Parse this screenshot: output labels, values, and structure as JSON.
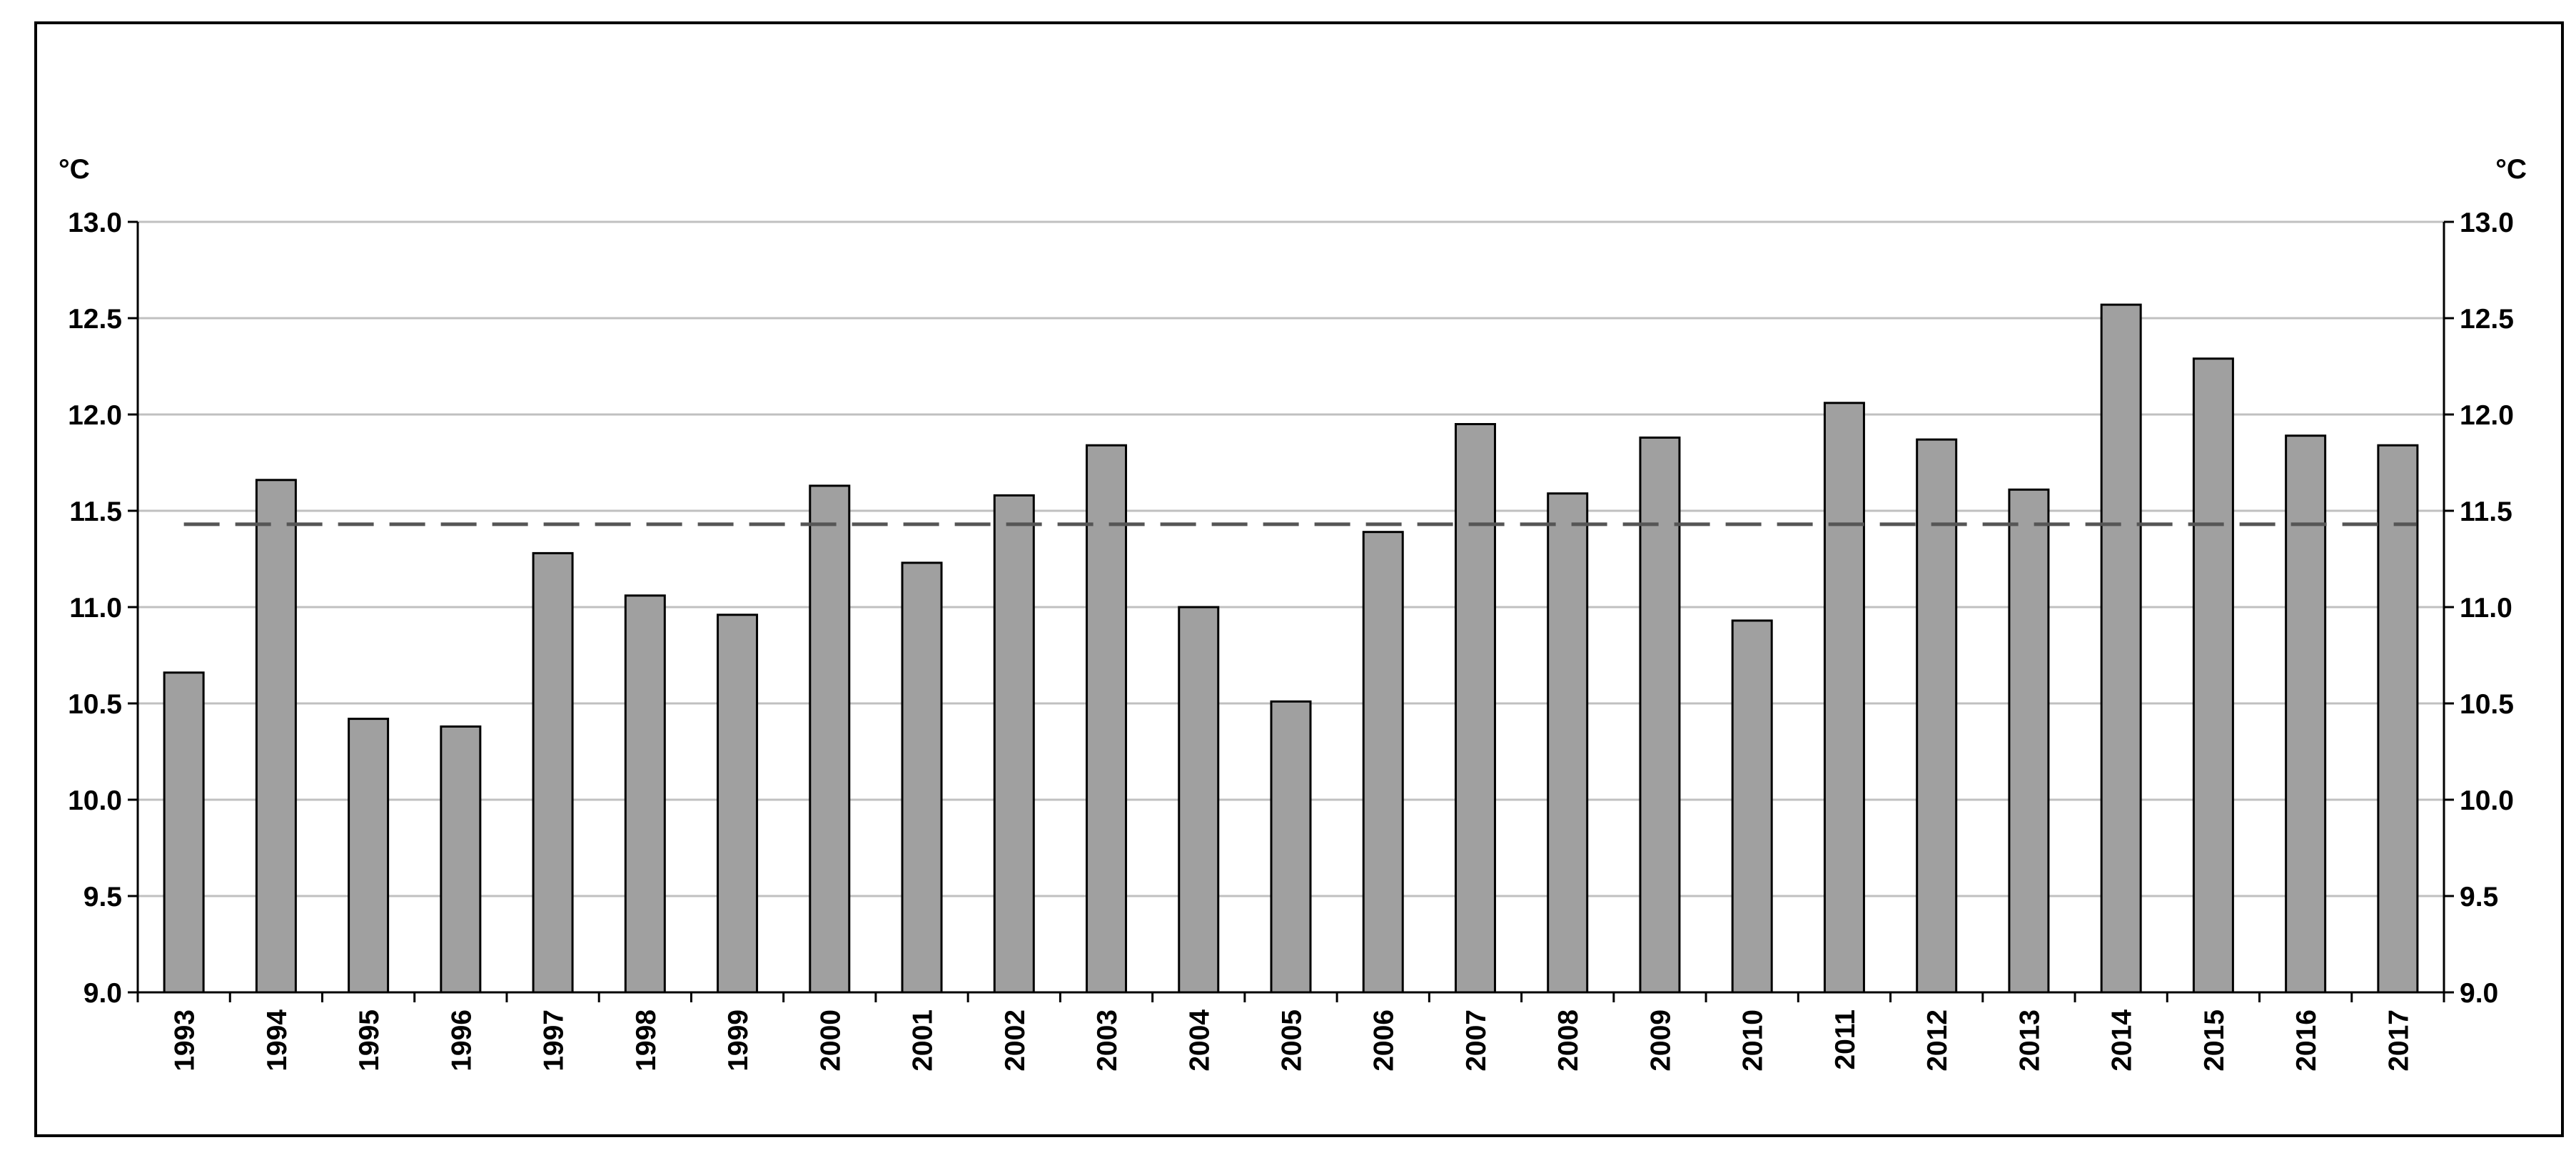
{
  "chart_data": {
    "type": "bar",
    "title": "",
    "xlabel": "",
    "ylabel": "°C",
    "ylabel_right": "°C",
    "ylim": [
      9.0,
      13.0
    ],
    "yticks": [
      "9.0",
      "9.5",
      "10.0",
      "10.5",
      "11.0",
      "11.5",
      "12.0",
      "12.5",
      "13.0"
    ],
    "grid": "horizontal",
    "legend": "none",
    "categories": [
      "1993",
      "1994",
      "1995",
      "1996",
      "1997",
      "1998",
      "1999",
      "2000",
      "2001",
      "2002",
      "2003",
      "2004",
      "2005",
      "2006",
      "2007",
      "2008",
      "2009",
      "2010",
      "2011",
      "2012",
      "2013",
      "2014",
      "2015",
      "2016",
      "2017"
    ],
    "values": [
      10.66,
      11.66,
      10.42,
      10.38,
      11.28,
      11.06,
      10.96,
      11.63,
      11.23,
      11.58,
      11.84,
      11.0,
      10.51,
      11.39,
      11.95,
      11.59,
      11.88,
      10.93,
      12.06,
      11.87,
      11.61,
      12.57,
      12.29,
      11.89,
      11.84
    ],
    "reference_line": {
      "value": 11.43,
      "style": "dashed"
    },
    "colors": {
      "bar_fill": "#a0a0a0",
      "bar_stroke": "#000000",
      "grid": "#c0c0c0",
      "reference_line": "#555555"
    }
  }
}
